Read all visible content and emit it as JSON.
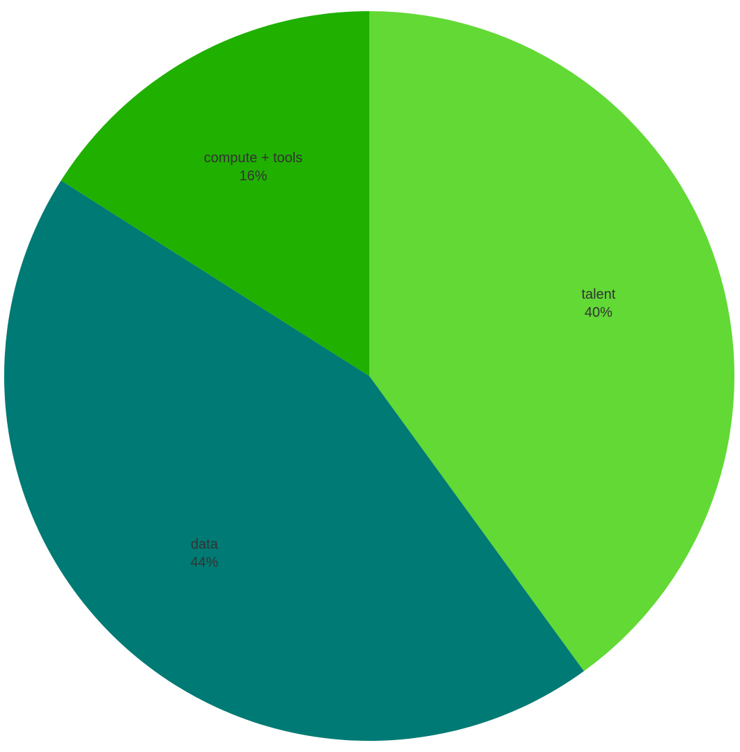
{
  "chart_data": {
    "type": "pie",
    "slices": [
      {
        "label": "talent",
        "value": 40,
        "value_label": "40%",
        "color": "#62d935"
      },
      {
        "label": "data",
        "value": 44,
        "value_label": "44%",
        "color": "#007a74"
      },
      {
        "label": "compute + tools",
        "value": 16,
        "value_label": "16%",
        "color": "#20b000"
      }
    ],
    "start_angle_deg": 0,
    "direction": "clockwise",
    "legend": "none",
    "title": ""
  }
}
